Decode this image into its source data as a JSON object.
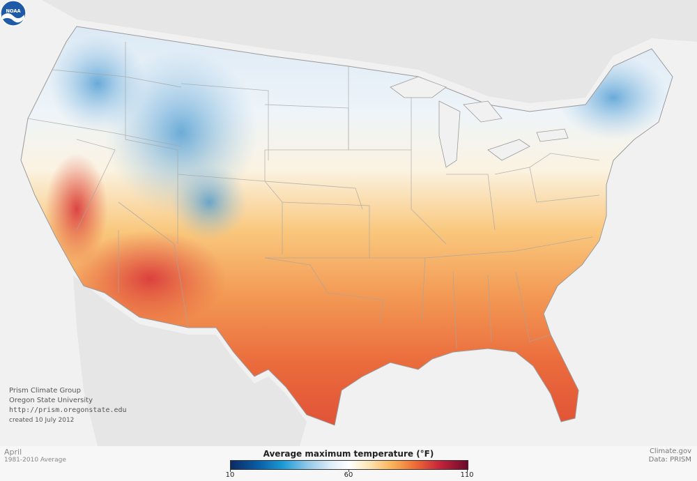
{
  "credits": {
    "line1": "Prism Climate Group",
    "line2": "Oregon State University",
    "line3": "http://prism.oregonstate.edu",
    "line4": "created 10 July 2012"
  },
  "footer": {
    "month": "April",
    "period": "1981-2010 Average",
    "source_site": "Climate.gov",
    "source_data": "Data: PRISM"
  },
  "legend": {
    "title": "Average maximum temperature (°F)",
    "tick_min": "10",
    "tick_mid": "60",
    "tick_max": "110",
    "min_value": 10,
    "mid_value": 60,
    "max_value": 110
  },
  "logo": {
    "text": "NOAA",
    "icon": "noaa-logo-icon"
  },
  "colors": {
    "cold": "#1b9ad6",
    "mild": "#ffffff",
    "warm": "#f9b45a",
    "hot": "#c7243a"
  }
}
